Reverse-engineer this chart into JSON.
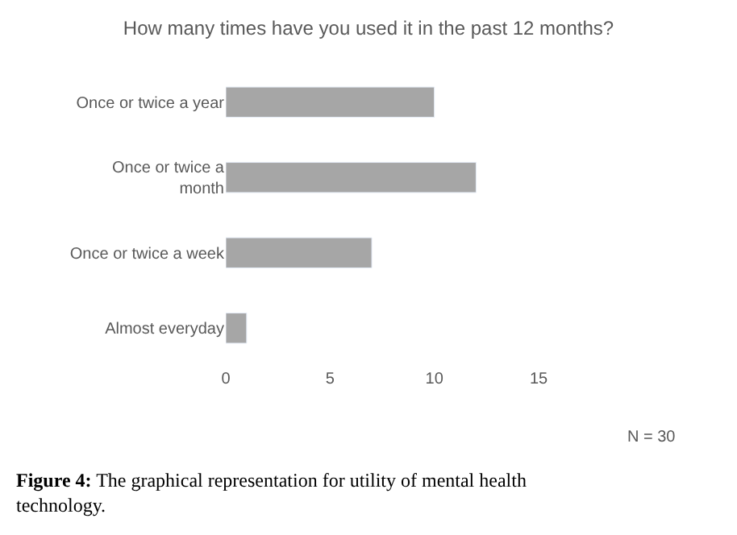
{
  "chart_data": {
    "type": "bar",
    "orientation": "horizontal",
    "title": "How many times have you used it in the past 12 months?",
    "categories": [
      "Once or twice a year",
      "Once or twice a month",
      "Once or twice a week",
      "Almost everyday"
    ],
    "values": [
      10,
      12,
      7,
      1
    ],
    "color": "#a6a6a6",
    "xlim": [
      0,
      15
    ],
    "xticks": [
      0,
      5,
      10,
      15
    ],
    "annotations": [
      "N = 30",
      "Figure 4:",
      "The graphical representation for utility of mental health technology."
    ]
  }
}
